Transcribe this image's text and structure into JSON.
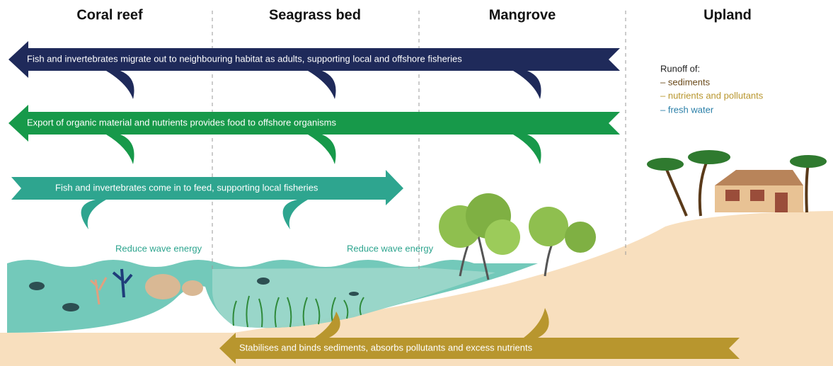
{
  "headers": [
    "Coral reef",
    "Seagrass bed",
    "Mangrove",
    "Upland"
  ],
  "arrows": [
    "Fish and invertebrates migrate out to neighbouring habitat as adults, supporting local and offshore fisheries",
    "Export of organic material and nutrients provides food to offshore organisms",
    "Fish and invertebrates come in to feed, supporting local fisheries",
    "Stabilises and binds sediments, absorbs pollutants and excess nutrients"
  ],
  "wave_labels": [
    "Reduce wave energy",
    "Reduce wave energy"
  ],
  "runoff": {
    "title": "Runoff of:",
    "items": [
      "– sediments",
      "– nutrients and pollutants",
      "– fresh water"
    ]
  }
}
